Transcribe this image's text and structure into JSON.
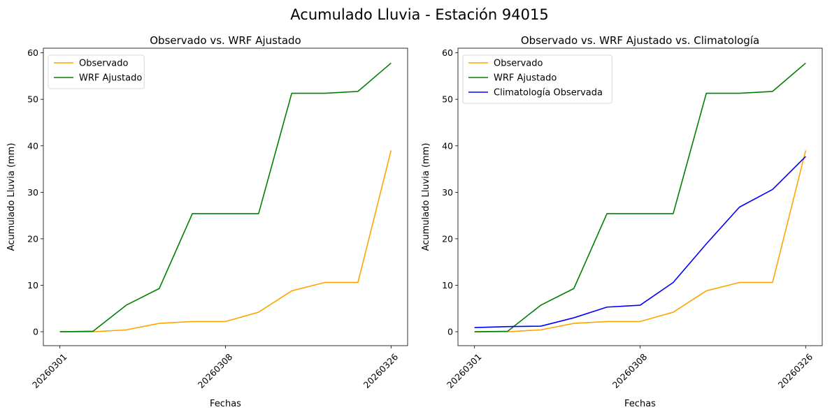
{
  "figure": {
    "suptitle": "Acumulado Lluvia - Estación 94015"
  },
  "chart_data": [
    {
      "type": "line",
      "title": "Observado vs. WRF Ajustado",
      "xlabel": "Fechas",
      "ylabel": "Acumulado Lluvia (mm)",
      "ylim": [
        -3,
        61
      ],
      "yticks": [
        0,
        10,
        20,
        30,
        40,
        50,
        60
      ],
      "x": [
        0,
        1,
        2,
        3,
        4,
        5,
        6,
        7,
        8,
        9,
        10
      ],
      "xlim": [
        -0.5,
        10.5
      ],
      "xticks": [
        {
          "pos": 0,
          "label": "20260301"
        },
        {
          "pos": 5,
          "label": "20260308"
        },
        {
          "pos": 10,
          "label": "20260326"
        }
      ],
      "grid": false,
      "legend": "top-left",
      "series": [
        {
          "name": "Observado",
          "color": "#FFA500",
          "values": [
            0,
            0,
            0.4,
            1.8,
            2.2,
            2.2,
            4.2,
            8.8,
            10.6,
            10.6,
            39
          ]
        },
        {
          "name": "WRF Ajustado",
          "color": "#008000",
          "values": [
            0,
            0.1,
            5.7,
            9.3,
            25.4,
            25.4,
            25.4,
            51.3,
            51.3,
            51.7,
            57.8
          ]
        }
      ]
    },
    {
      "type": "line",
      "title": "Observado vs. WRF Ajustado vs. Climatología",
      "xlabel": "Fechas",
      "ylabel": "Acumulado Lluvia (mm)",
      "ylim": [
        -3,
        61
      ],
      "yticks": [
        0,
        10,
        20,
        30,
        40,
        50,
        60
      ],
      "x": [
        0,
        1,
        2,
        3,
        4,
        5,
        6,
        7,
        8,
        9,
        10
      ],
      "xlim": [
        -0.5,
        10.5
      ],
      "xticks": [
        {
          "pos": 0,
          "label": "20260301"
        },
        {
          "pos": 5,
          "label": "20260308"
        },
        {
          "pos": 10,
          "label": "20260326"
        }
      ],
      "grid": false,
      "legend": "top-left",
      "series": [
        {
          "name": "Observado",
          "color": "#FFA500",
          "values": [
            0,
            0,
            0.4,
            1.8,
            2.2,
            2.2,
            4.2,
            8.8,
            10.6,
            10.6,
            39
          ]
        },
        {
          "name": "WRF Ajustado",
          "color": "#008000",
          "values": [
            0,
            0.1,
            5.7,
            9.3,
            25.4,
            25.4,
            25.4,
            51.3,
            51.3,
            51.7,
            57.8
          ]
        },
        {
          "name": "Climatología Observada",
          "color": "#0000FF",
          "values": [
            0.9,
            1.1,
            1.2,
            3.0,
            5.3,
            5.7,
            10.6,
            18.9,
            26.8,
            30.6,
            37.7
          ]
        }
      ]
    }
  ]
}
